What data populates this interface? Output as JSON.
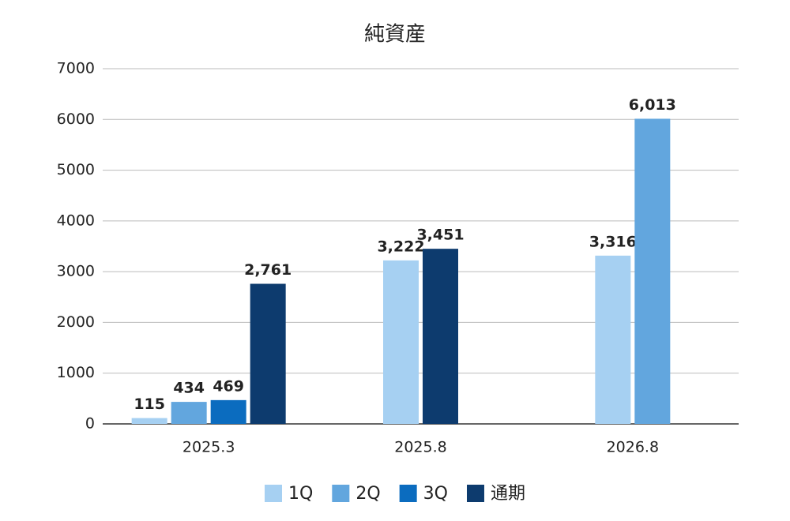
{
  "chart_data": {
    "type": "bar",
    "title": "純資産",
    "categories": [
      "2025.3",
      "2025.8",
      "2026.8"
    ],
    "series": [
      {
        "name": "1Q",
        "color": "#a6d0f2",
        "values": [
          115,
          3222,
          3316
        ],
        "value_labels": [
          "115",
          "3,222",
          "3,316"
        ]
      },
      {
        "name": "2Q",
        "color": "#62a6de",
        "values": [
          434,
          null,
          6013
        ],
        "value_labels": [
          "434",
          null,
          "6,013"
        ]
      },
      {
        "name": "3Q",
        "color": "#0b6cbf",
        "values": [
          469,
          null,
          null
        ],
        "value_labels": [
          "469",
          null,
          null
        ]
      },
      {
        "name": "通期",
        "color": "#0d3b6e",
        "values": [
          2761,
          3451,
          null
        ],
        "value_labels": [
          "2,761",
          "3,451",
          null
        ]
      }
    ],
    "ylim": [
      0,
      7000
    ],
    "yticks": [
      0,
      1000,
      2000,
      3000,
      4000,
      5000,
      6000,
      7000
    ],
    "grid": true,
    "legend": "bottom"
  }
}
